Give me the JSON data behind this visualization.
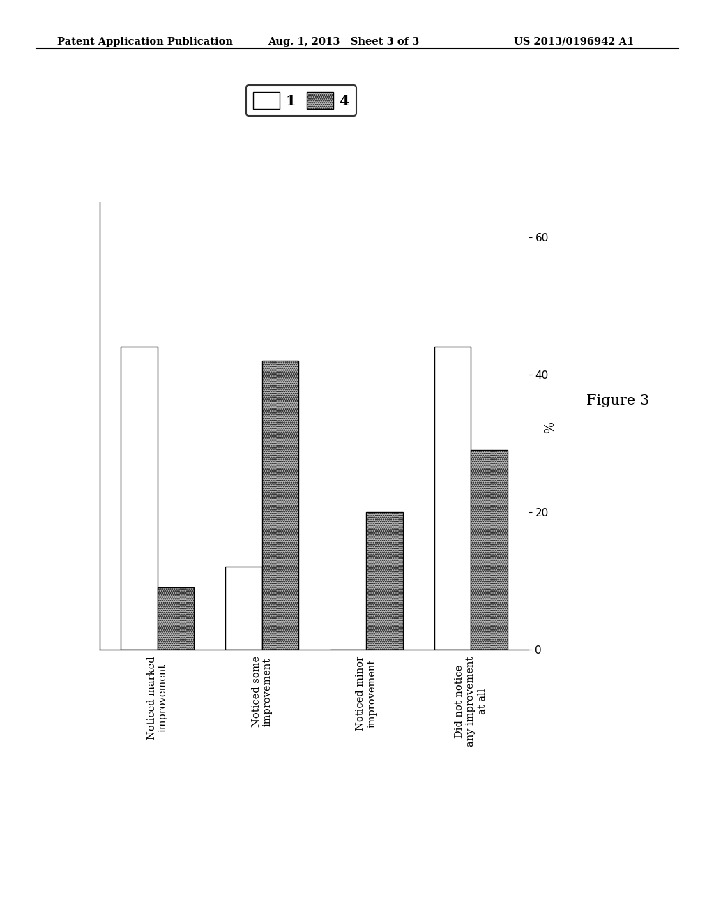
{
  "categories": [
    "Noticed marked\nimprovement",
    "Noticed some\nimprovement",
    "Noticed minor\nimprovement",
    "Did not notice\nany improvement\nat all"
  ],
  "series1_values": [
    44,
    12,
    0,
    44
  ],
  "series4_values": [
    9,
    42,
    20,
    29
  ],
  "series1_color": "#ffffff",
  "series4_color": "#b8b8b8",
  "series1_label": "1",
  "series4_label": "4",
  "bar_edge_color": "#000000",
  "ylabel": "%",
  "ylim": [
    0,
    65
  ],
  "yticks": [
    0,
    20,
    40,
    60
  ],
  "figure_label": "Figure 3",
  "header_left": "Patent Application Publication",
  "header_center": "Aug. 1, 2013   Sheet 3 of 3",
  "header_right": "US 2013/0196942 A1",
  "background_color": "#ffffff",
  "bar_width": 0.35
}
